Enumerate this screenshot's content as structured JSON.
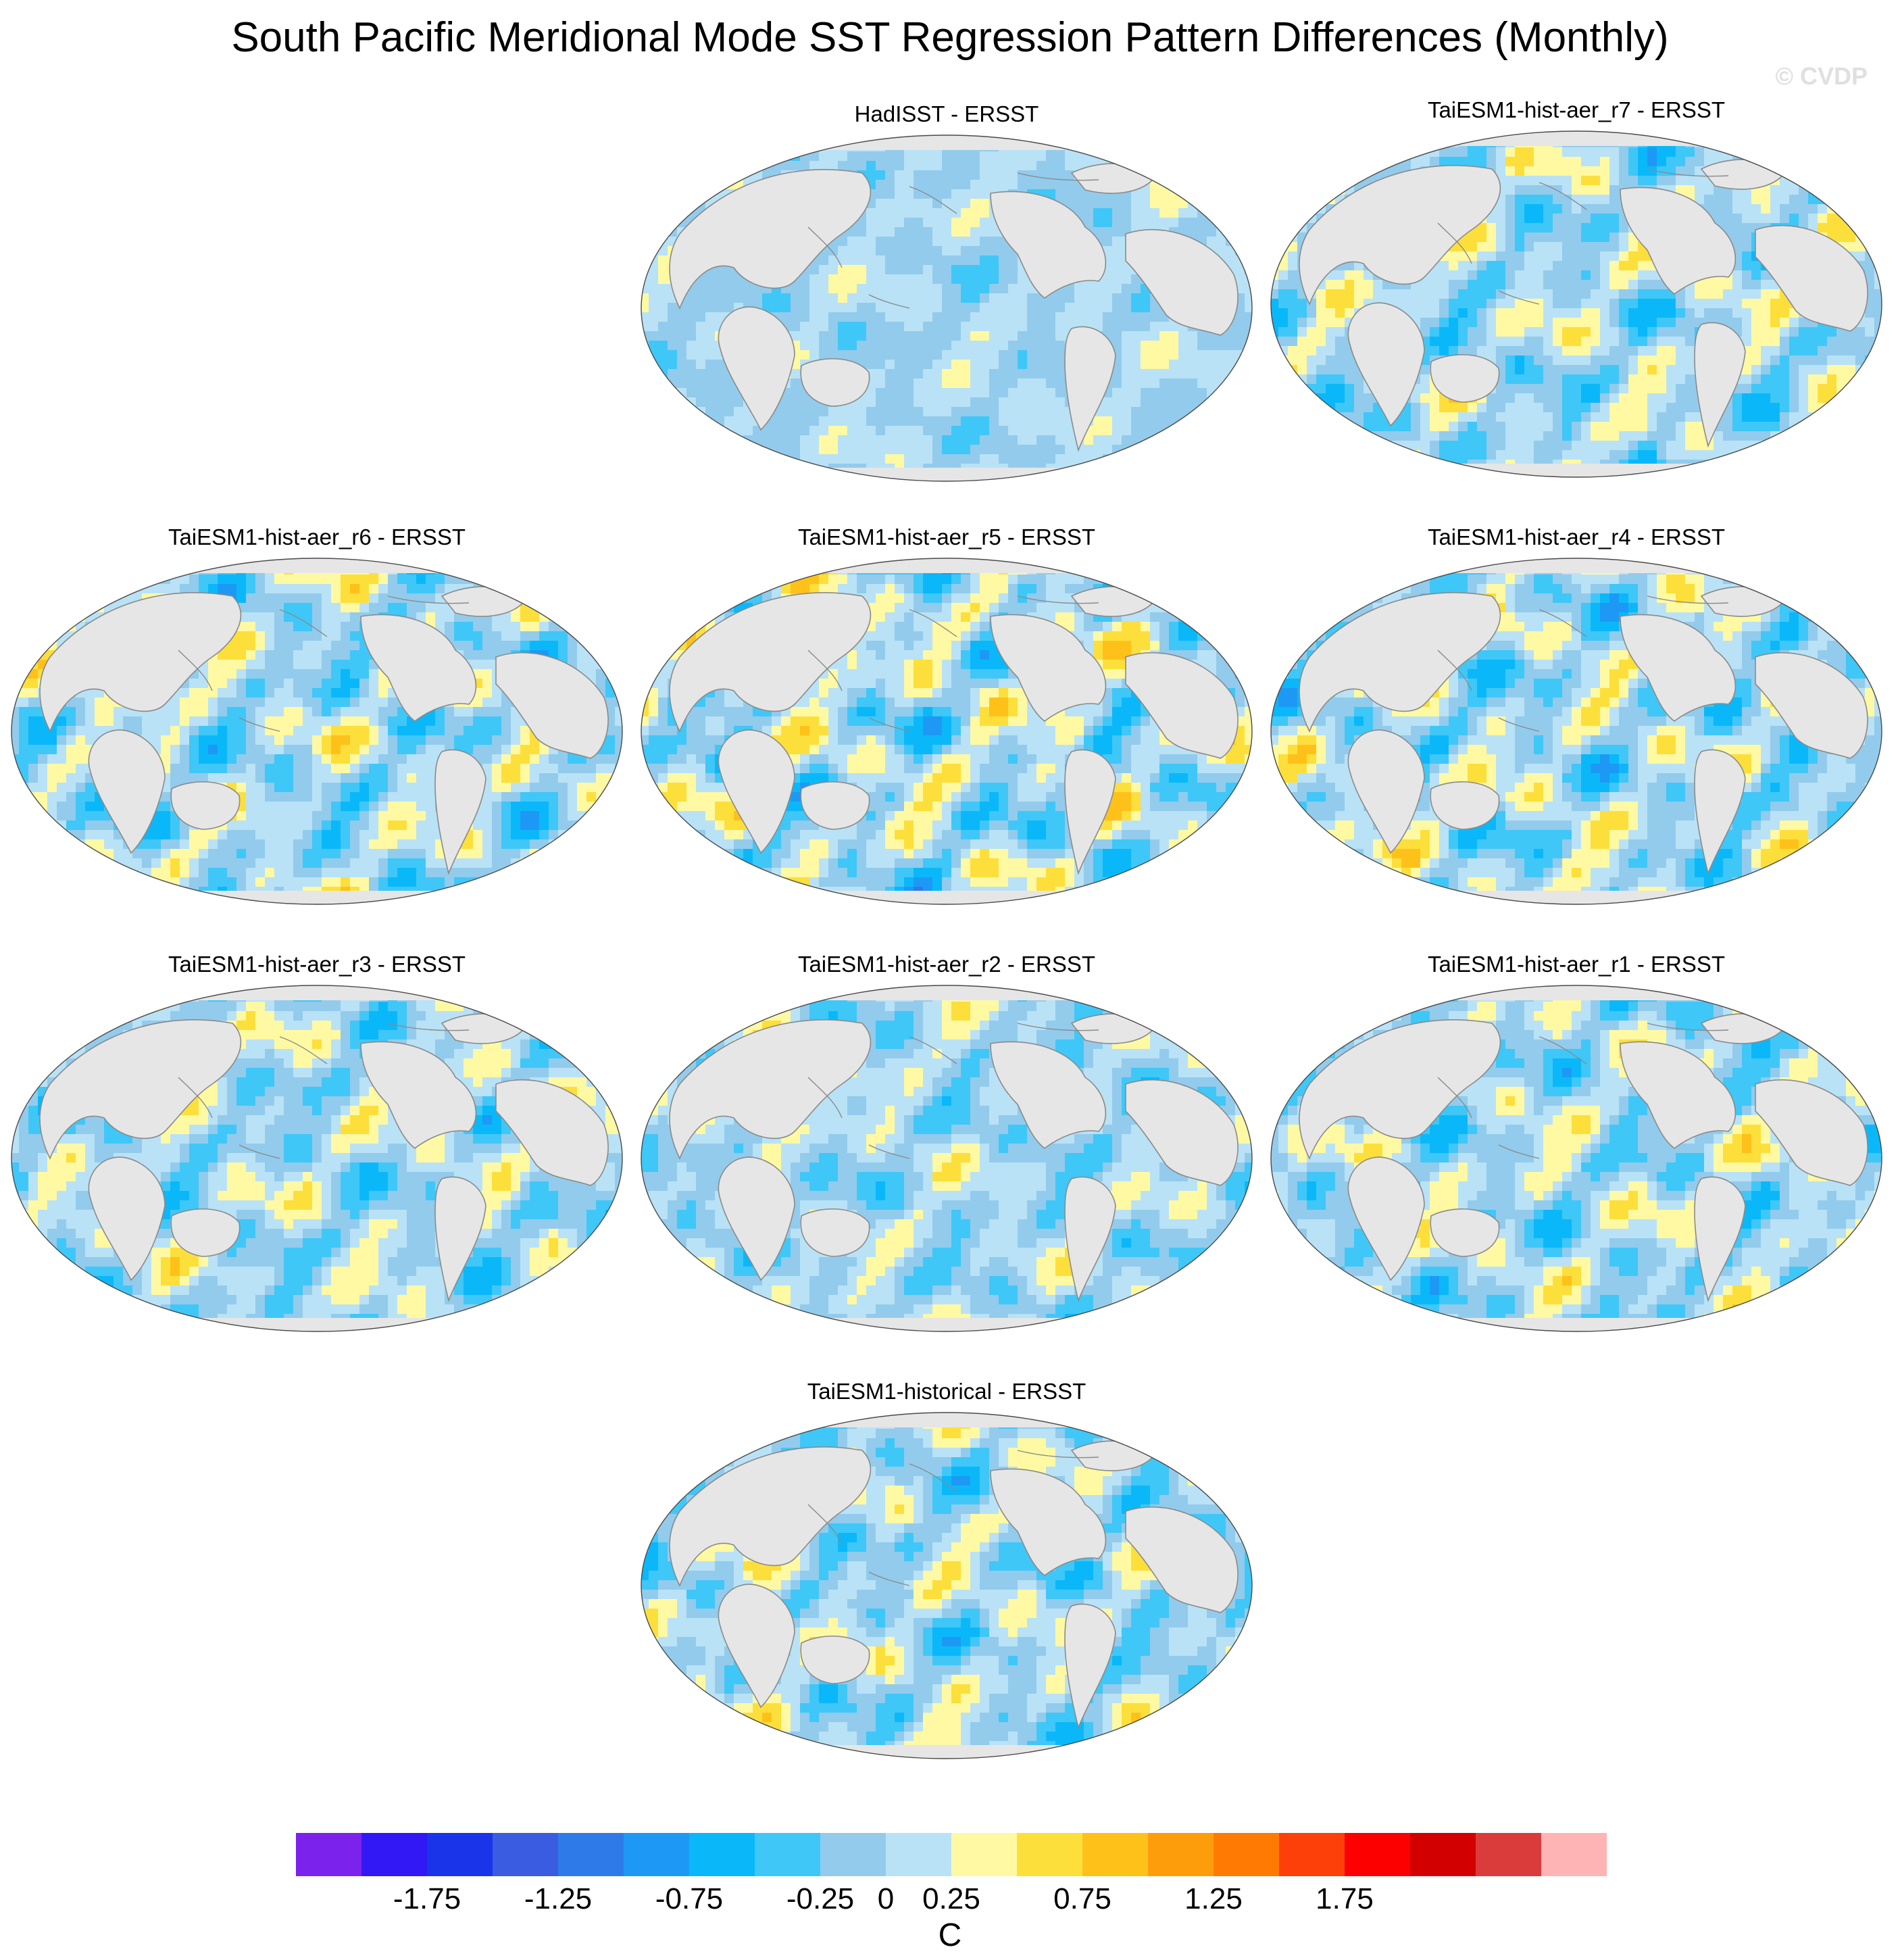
{
  "title": "South Pacific Meridional Mode SST Regression Pattern Differences (Monthly)",
  "watermark": "© CVDP",
  "chart_data": {
    "type": "heatmap",
    "title": "South Pacific Meridional Mode SST Regression Pattern Differences (Monthly)",
    "projection": "global ellipse map, Pacific-centered",
    "panels": [
      {
        "id": "p0",
        "title": "HadISST - ERSST",
        "seed": 11,
        "amp": 0.45
      },
      {
        "id": "p1",
        "title": "TaiESM1-hist-aer_r7 - ERSST",
        "seed": 23,
        "amp": 0.85
      },
      {
        "id": "p2",
        "title": "TaiESM1-hist-aer_r6 - ERSST",
        "seed": 37,
        "amp": 0.9
      },
      {
        "id": "p3",
        "title": "TaiESM1-hist-aer_r5 - ERSST",
        "seed": 41,
        "amp": 1.0
      },
      {
        "id": "p4",
        "title": "TaiESM1-hist-aer_r4 - ERSST",
        "seed": 53,
        "amp": 0.95
      },
      {
        "id": "p5",
        "title": "TaiESM1-hist-aer_r3 - ERSST",
        "seed": 67,
        "amp": 0.8
      },
      {
        "id": "p6",
        "title": "TaiESM1-hist-aer_r2 - ERSST",
        "seed": 71,
        "amp": 0.7
      },
      {
        "id": "p7",
        "title": "TaiESM1-hist-aer_r1 - ERSST",
        "seed": 83,
        "amp": 0.85
      },
      {
        "id": "p8",
        "title": "TaiESM1-historical - ERSST",
        "seed": 97,
        "amp": 0.85
      }
    ],
    "colorbar": {
      "label": "C",
      "levels": [
        -2,
        -1.75,
        -1.5,
        -1.25,
        -1,
        -0.75,
        -0.5,
        -0.25,
        0,
        0.25,
        0.5,
        0.75,
        1,
        1.25,
        1.5,
        1.75,
        2
      ],
      "tick_labels": [
        "-1.75",
        "-1.25",
        "-0.75",
        "-0.25",
        "0",
        "0.25",
        "0.75",
        "1.25",
        "1.75"
      ],
      "colors": [
        "#7c22ed",
        "#3218f4",
        "#1a34ea",
        "#3a5ce0",
        "#2f7ae9",
        "#1d99f5",
        "#0ab8f9",
        "#3fc7f8",
        "#93cbec",
        "#b9e2f6",
        "#fff9a3",
        "#fddf3c",
        "#fec11a",
        "#fe9d0c",
        "#fe7a02",
        "#fd3f0a",
        "#fc0000",
        "#d30000",
        "#da3b3b",
        "#feb4b4"
      ],
      "land_color": "#e6e6e6"
    }
  }
}
